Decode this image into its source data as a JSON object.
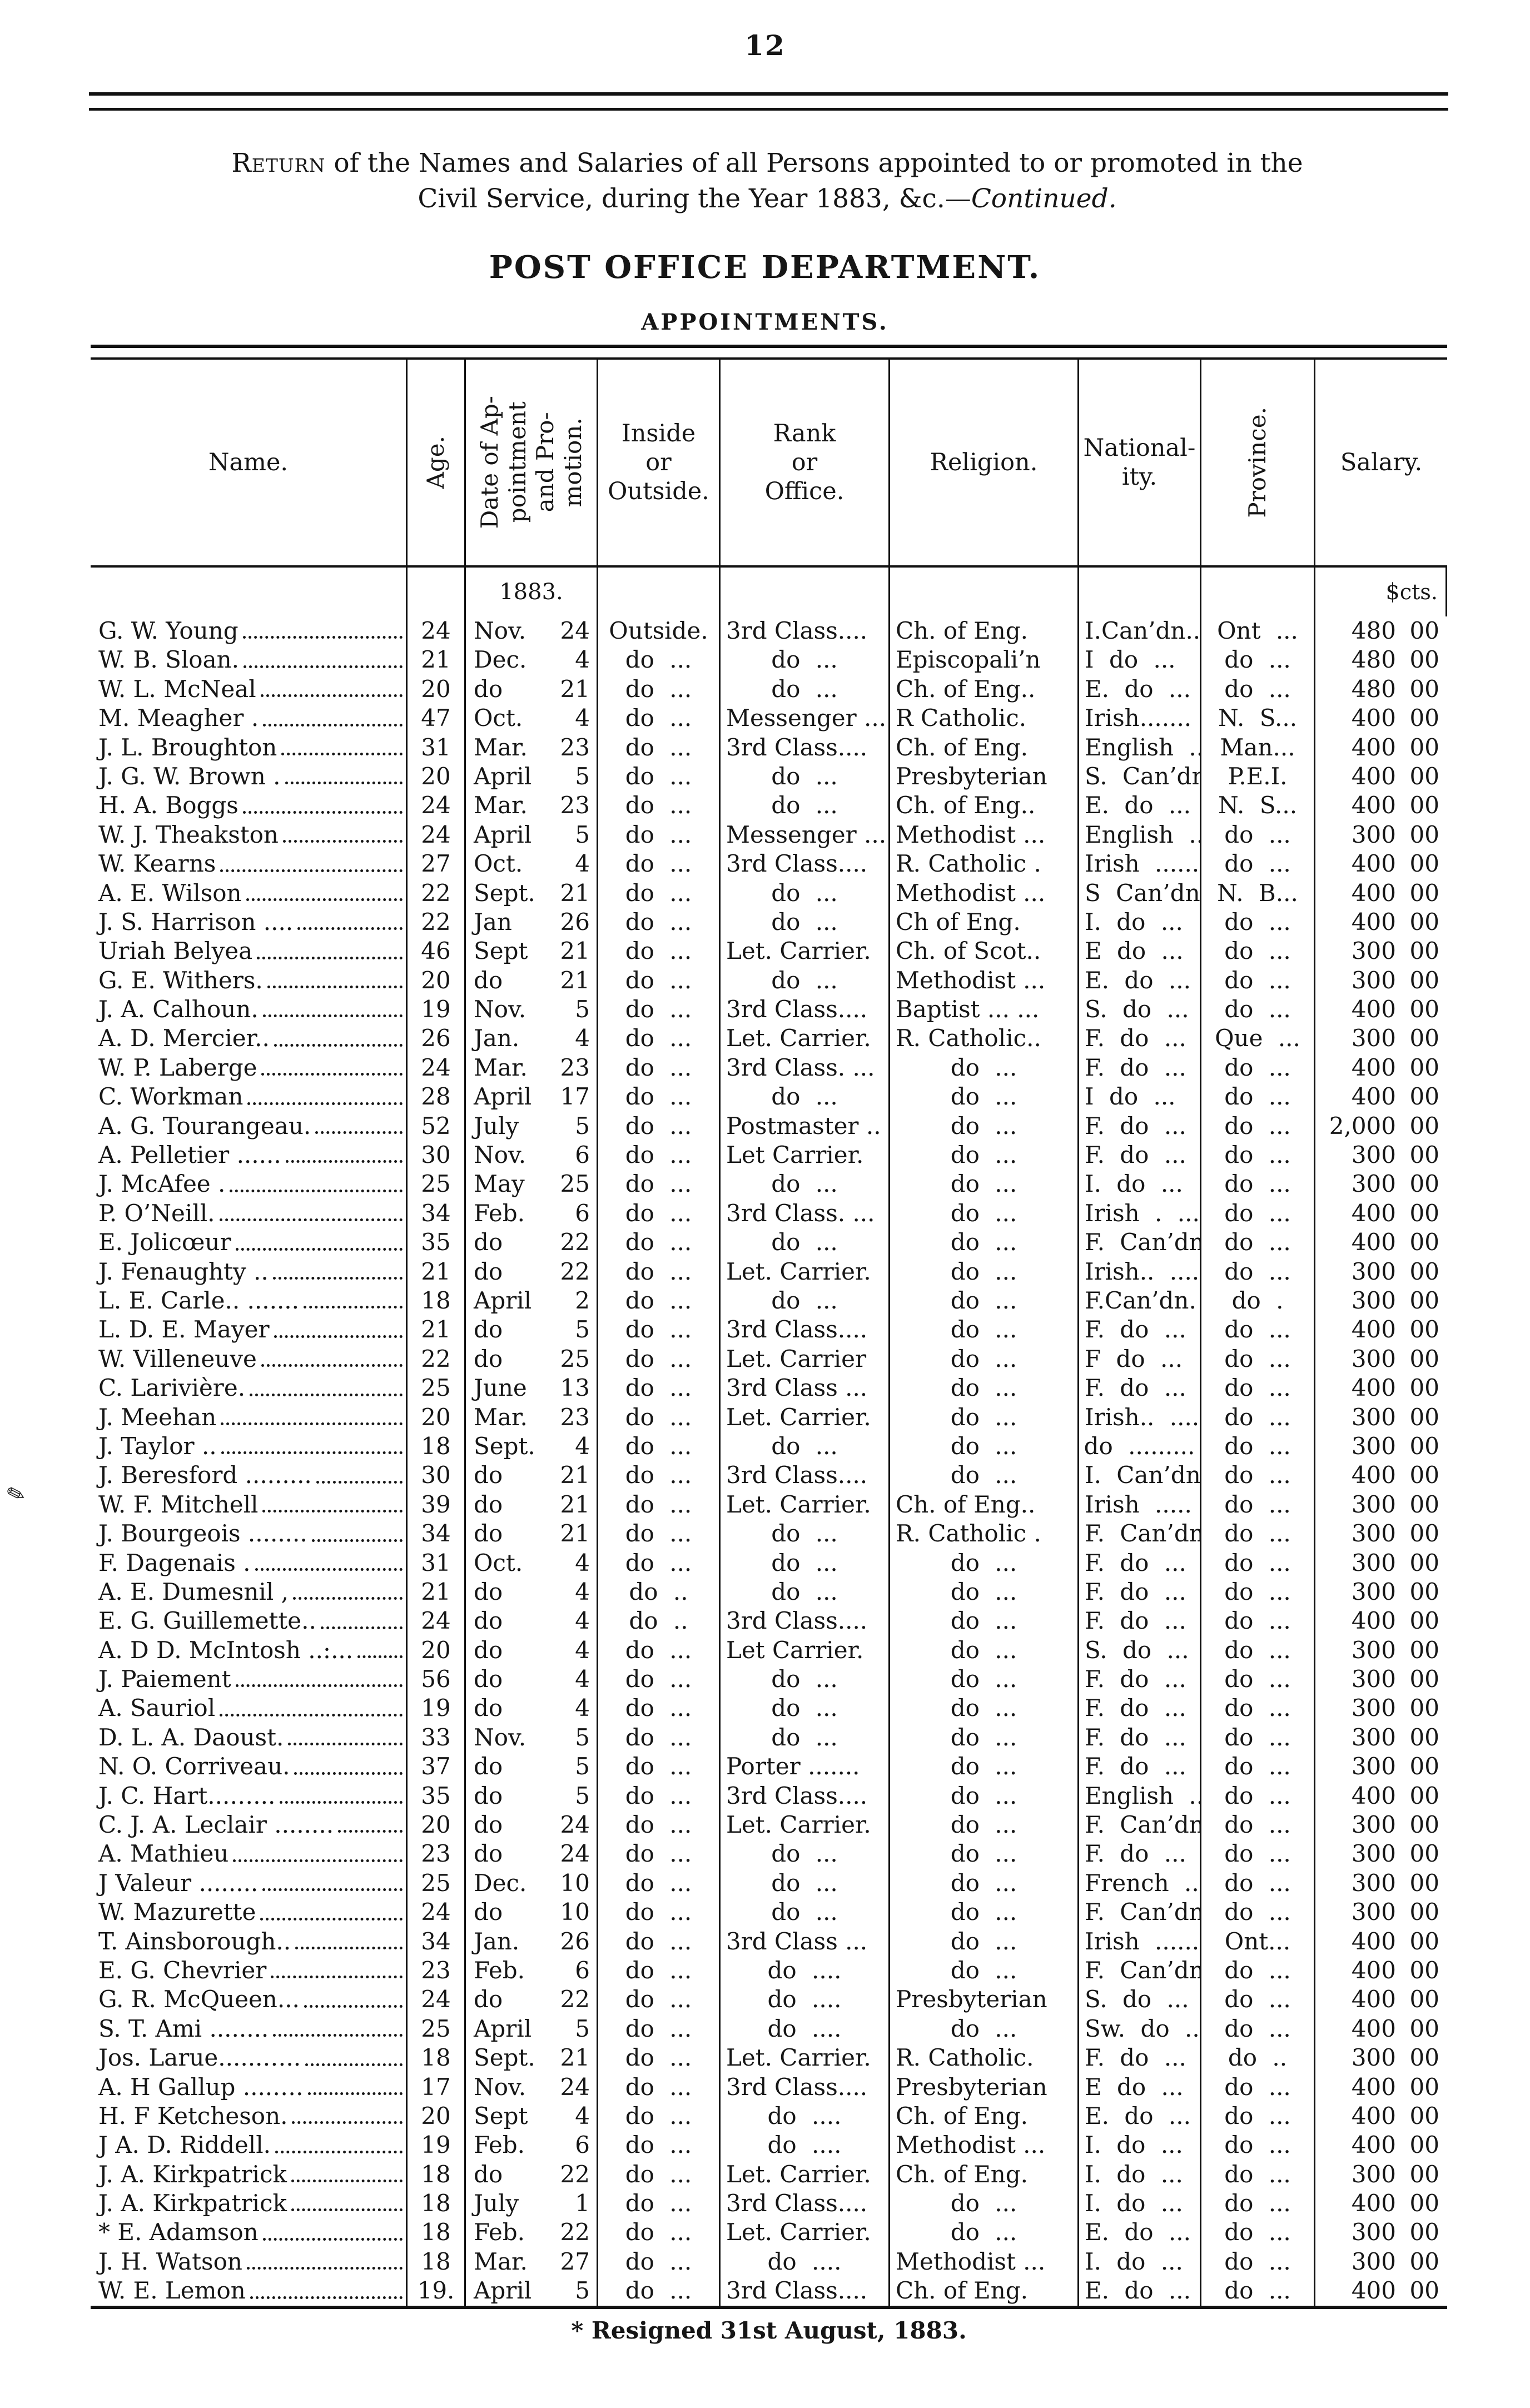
{
  "page": {
    "number": "12"
  },
  "title": {
    "line1_lead": "Return",
    "line1_rest": " of the Names and Salaries of all Persons appointed to or promoted in the",
    "line2_pre": "Civil Service, during the Year 1883, &c.—",
    "line2_italic": "Continued.",
    "dept": "POST OFFICE DEPARTMENT.",
    "section": "APPOINTMENTS."
  },
  "table": {
    "headers": {
      "name": "Name.",
      "age": "Age.",
      "date": "Date of Ap-\npointment\nand Pro-\nmotion.",
      "inout": "Inside\nor\nOutside.",
      "rank": "Rank\nor\nOffice.",
      "religion": "Religion.",
      "nationality": "National-\nity.",
      "province": "Province.",
      "salary": "Salary."
    },
    "year_label": "1883.",
    "salary_dollar_sign": "$",
    "salary_cents_label": "cts.",
    "rows": [
      [
        "G. W. Young",
        "24",
        "Nov.",
        "24",
        "Outside.",
        "3rd Class....",
        "Ch. of Eng.",
        "I.Can’dn..",
        "Ont ...",
        "480",
        "00"
      ],
      [
        "W. B. Sloan.",
        "21",
        "Dec.",
        "4",
        "do ...",
        "do ...",
        "Episcopali’n",
        "I do ...",
        "do ...",
        "480",
        "00"
      ],
      [
        "W. L. McNeal",
        "20",
        "do",
        "21",
        "do ...",
        "do ...",
        "Ch. of Eng..",
        "E. do ...",
        "do ...",
        "480",
        "00"
      ],
      [
        "M. Meagher .",
        "47",
        "Oct.",
        "4",
        "do ...",
        "Messenger ...",
        "R Catholic.",
        "Irish.......",
        "N. S...",
        "400",
        "00"
      ],
      [
        "J. L. Broughton",
        "31",
        "Mar.",
        "23",
        "do ...",
        "3rd Class....",
        "Ch. of Eng.",
        "English ...",
        "Man...",
        "400",
        "00"
      ],
      [
        "J. G. W. Brown .",
        "20",
        "April",
        "5",
        "do ...",
        "do ...",
        "Presbyterian",
        "S. Can’dn",
        "P.E.I.",
        "400",
        "00"
      ],
      [
        "H. A. Boggs",
        "24",
        "Mar.",
        "23",
        "do ...",
        "do ...",
        "Ch. of Eng..",
        "E. do ...",
        "N. S...",
        "400",
        "00"
      ],
      [
        "W. J. Theakston",
        "24",
        "April",
        "5",
        "do ...",
        "Messenger ...",
        "Methodist ...",
        "English ...",
        "do ...",
        "300",
        "00"
      ],
      [
        "W. Kearns",
        "27",
        "Oct.",
        "4",
        "do ...",
        "3rd Class....",
        "R. Catholic .",
        "Irish ......",
        "do ...",
        "400",
        "00"
      ],
      [
        "A. E. Wilson",
        "22",
        "Sept.",
        "21",
        "do ...",
        "do ...",
        "Methodist ...",
        "S Can’dn.",
        "N. B...",
        "400",
        "00"
      ],
      [
        "J. S. Harrison ....",
        "22",
        "Jan",
        "26",
        "do ...",
        "do ...",
        "Ch of Eng.",
        "I. do ...",
        "do ...",
        "400",
        "00"
      ],
      [
        "Uriah Belyea",
        "46",
        "Sept",
        "21",
        "do ...",
        "Let. Carrier.",
        "Ch. of Scot..",
        "E do ...",
        "do ...",
        "300",
        "00"
      ],
      [
        "G. E. Withers.",
        "20",
        "do",
        "21",
        "do ...",
        "do ...",
        "Methodist ...",
        "E. do ...",
        "do ...",
        "300",
        "00"
      ],
      [
        "J. A. Calhoun.",
        "19",
        "Nov.",
        "5",
        "do ...",
        "3rd Class....",
        "Baptist ... ...",
        "S. do ...",
        "do ...",
        "400",
        "00"
      ],
      [
        "A. D. Mercier..",
        "26",
        "Jan.",
        "4",
        "do ...",
        "Let. Carrier.",
        "R. Catholic..",
        "F. do ...",
        "Que ...",
        "300",
        "00"
      ],
      [
        "W. P. Laberge",
        "24",
        "Mar.",
        "23",
        "do ...",
        "3rd Class. ...",
        "do ...",
        "F. do ...",
        "do ...",
        "400",
        "00"
      ],
      [
        "C. Workman",
        "28",
        "April",
        "17",
        "do ...",
        "do ...",
        "do ...",
        "I do ...",
        "do ...",
        "400",
        "00"
      ],
      [
        "A. G. Tourangeau.",
        "52",
        "July",
        "5",
        "do ...",
        "Postmaster ..",
        "do ...",
        "F. do ...",
        "do ...",
        "2,000",
        "00"
      ],
      [
        "A. Pelletier ......",
        "30",
        "Nov.",
        "6",
        "do ...",
        "Let Carrier.",
        "do ...",
        "F. do ...",
        "do ...",
        "300",
        "00"
      ],
      [
        "J. McAfee .",
        "25",
        "May",
        "25",
        "do ...",
        "do ...",
        "do ...",
        "I. do ...",
        "do ...",
        "300",
        "00"
      ],
      [
        "P. O’Neill.",
        "34",
        "Feb.",
        "6",
        "do ...",
        "3rd Class. ...",
        "do ...",
        "Irish . .....",
        "do ...",
        "400",
        "00"
      ],
      [
        "E. Jolicœur",
        "35",
        "do",
        "22",
        "do ...",
        "do ...",
        "do ...",
        "F. Can’dn.",
        "do ...",
        "400",
        "00"
      ],
      [
        "J. Fenaughty ..",
        "21",
        "do",
        "22",
        "do ...",
        "Let. Carrier.",
        "do ...",
        "Irish.. .....",
        "do ...",
        "300",
        "00"
      ],
      [
        "L. E. Carle.. .......",
        "18",
        "April",
        "2",
        "do ...",
        "do ...",
        "do ...",
        "F.Can’dn.",
        "do .",
        "300",
        "00"
      ],
      [
        "L. D. E. Mayer",
        "21",
        "do",
        "5",
        "do ...",
        "3rd Class....",
        "do ...",
        "F. do ...",
        "do ...",
        "400",
        "00"
      ],
      [
        "W. Villeneuve",
        "22",
        "do",
        "25",
        "do ...",
        "Let. Carrier",
        "do ...",
        "F do ...",
        "do ...",
        "300",
        "00"
      ],
      [
        "C. Larivière.",
        "25",
        "June",
        "13",
        "do ...",
        "3rd Class ...",
        "do ...",
        "F. do ...",
        "do ...",
        "400",
        "00"
      ],
      [
        "J. Meehan",
        "20",
        "Mar.",
        "23",
        "do ...",
        "Let. Carrier.",
        "do ...",
        "Irish.. ......",
        "do ...",
        "300",
        "00"
      ],
      [
        "J. Taylor ..",
        "18",
        "Sept.",
        "4",
        "do ...",
        "do ...",
        "do ...",
        "do .........",
        "do ...",
        "300",
        "00"
      ],
      [
        "J. Beresford .........",
        "30",
        "do",
        "21",
        "do ...",
        "3rd Class....",
        "do ...",
        "I. Can’dn.",
        "do ...",
        "400",
        "00"
      ],
      [
        "W. F. Mitchell",
        "39",
        "do",
        "21",
        "do ...",
        "Let. Carrier.",
        "Ch. of Eng..",
        "Irish ..... ..",
        "do ...",
        "300",
        "00"
      ],
      [
        "J. Bourgeois ........",
        "34",
        "do",
        "21",
        "do ...",
        "do ...",
        "R. Catholic .",
        "F. Can’dn",
        "do ...",
        "300",
        "00"
      ],
      [
        "F. Dagenais .",
        "31",
        "Oct.",
        "4",
        "do ...",
        "do ...",
        "do ...",
        "F. do ...",
        "do ...",
        "300",
        "00"
      ],
      [
        "A. E. Dumesnil ,",
        "21",
        "do",
        "4",
        "do ..",
        "do ...",
        "do ...",
        "F. do ...",
        "do ...",
        "300",
        "00"
      ],
      [
        "E. G. Guillemette..",
        "24",
        "do",
        "4",
        "do ..",
        "3rd Class....",
        "do ...",
        "F. do ...",
        "do ...",
        "400",
        "00"
      ],
      [
        "A. D D. McIntosh ..:...",
        "20",
        "do",
        "4",
        "do ...",
        "Let Carrier.",
        "do ...",
        "S. do ...",
        "do ...",
        "300",
        "00"
      ],
      [
        "J. Paiement",
        "56",
        "do",
        "4",
        "do ...",
        "do ...",
        "do ...",
        "F. do ...",
        "do ...",
        "300",
        "00"
      ],
      [
        "A. Sauriol",
        "19",
        "do",
        "4",
        "do ...",
        "do ...",
        "do ...",
        "F. do ...",
        "do ...",
        "300",
        "00"
      ],
      [
        "D. L. A. Daoust.",
        "33",
        "Nov.",
        "5",
        "do ...",
        "do ...",
        "do ...",
        "F. do ...",
        "do ...",
        "300",
        "00"
      ],
      [
        "N. O. Corriveau.",
        "37",
        "do",
        "5",
        "do ...",
        "Porter .......",
        "do ...",
        "F. do ...",
        "do ...",
        "300",
        "00"
      ],
      [
        "J. C. Hart...…...",
        "35",
        "do",
        "5",
        "do ...",
        "3rd Class....",
        "do ...",
        "English ...",
        "do ...",
        "400",
        "00"
      ],
      [
        "C. J. A. Leclair ........",
        "20",
        "do",
        "24",
        "do ...",
        "Let. Carrier.",
        "do ...",
        "F. Can’dn.",
        "do ...",
        "300",
        "00"
      ],
      [
        "A. Mathieu",
        "23",
        "do",
        "24",
        "do ...",
        "do ...",
        "do ...",
        "F. do ...",
        "do ...",
        "300",
        "00"
      ],
      [
        "J Valeur ........",
        "25",
        "Dec.",
        "10",
        "do ...",
        "do ...",
        "do ...",
        "French ....",
        "do ...",
        "300",
        "00"
      ],
      [
        "W. Mazurette",
        "24",
        "do",
        "10",
        "do ...",
        "do ...",
        "do ...",
        "F. Can’dn.",
        "do ...",
        "300",
        "00"
      ],
      [
        "T. Ainsborough..",
        "34",
        "Jan.",
        "26",
        "do ...",
        "3rd Class ...",
        "do ...",
        "Irish .......",
        "Ont...",
        "400",
        "00"
      ],
      [
        "E. G. Chevrier",
        "23",
        "Feb.",
        "6",
        "do ...",
        "do ....",
        "do ...",
        "F. Can’dn.",
        "do ...",
        "400",
        "00"
      ],
      [
        "G. R. McQueen...",
        "24",
        "do",
        "22",
        "do ...",
        "do ....",
        "Presbyterian",
        "S. do ...",
        "do ...",
        "400",
        "00"
      ],
      [
        "S. T. Ami ........",
        "25",
        "April",
        "5",
        "do ...",
        "do ....",
        "do ...",
        "Sw. do ...",
        "do ...",
        "400",
        "00"
      ],
      [
        "Jos. Larue......…..",
        "18",
        "Sept.",
        "21",
        "do ...",
        "Let. Carrier.",
        "R. Catholic.",
        "F. do ...",
        "do ..",
        "300",
        "00"
      ],
      [
        "A. H Gallup ....….",
        "17",
        "Nov.",
        "24",
        "do ...",
        "3rd Class....",
        "Presbyterian",
        "E do ...",
        "do ...",
        "400",
        "00"
      ],
      [
        "H. F Ketcheson.",
        "20",
        "Sept",
        "4",
        "do ...",
        "do ....",
        "Ch. of Eng.",
        "E. do ...",
        "do ...",
        "400",
        "00"
      ],
      [
        "J A. D. Riddell.",
        "19",
        "Feb.",
        "6",
        "do ...",
        "do ....",
        "Methodist ...",
        "I. do ...",
        "do ...",
        "400",
        "00"
      ],
      [
        "J. A. Kirkpatrick",
        "18",
        "do",
        "22",
        "do ...",
        "Let. Carrier.",
        "Ch. of Eng.",
        "I. do ...",
        "do ...",
        "300",
        "00"
      ],
      [
        "J. A. Kirkpatrick",
        "18",
        "July",
        "1",
        "do ...",
        "3rd Class....",
        "do ...",
        "I. do ...",
        "do ...",
        "400",
        "00"
      ],
      [
        "* E. Adamson",
        "18",
        "Feb.",
        "22",
        "do ...",
        "Let. Carrier.",
        "do ...",
        "E. do ...",
        "do ...",
        "300",
        "00"
      ],
      [
        "J. H. Watson",
        "18",
        "Mar.",
        "27",
        "do ...",
        "do ....",
        "Methodist ...",
        "I. do ...",
        "do ...",
        "300",
        "00"
      ],
      [
        "W. E. Lemon",
        "19.",
        "April",
        "5",
        "do ...",
        "3rd Class....",
        "Ch. of Eng.",
        "E. do ...",
        "do ...",
        "400",
        "00"
      ]
    ]
  },
  "footnote": "* Resigned 31st August, 1883."
}
